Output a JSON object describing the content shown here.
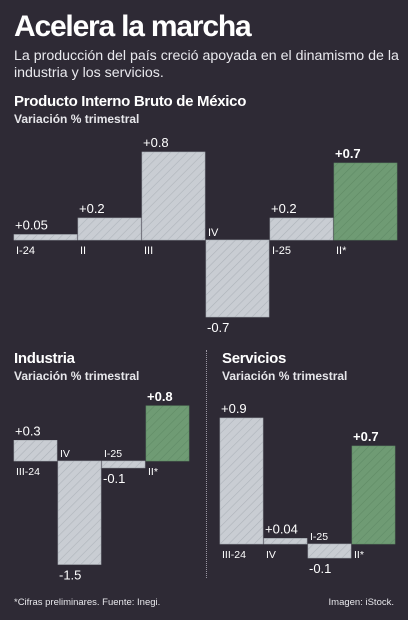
{
  "header": {
    "title": "Acelera la marcha",
    "subtitle": "La producción del país creció apoyada en el dinamismo de la industria y los servicios."
  },
  "colors": {
    "background": "#2e2a35",
    "bar_gray": "#c9cdd3",
    "bar_green": "#6f9b74"
  },
  "chart_data": [
    {
      "type": "bar",
      "title": "Producto Interno Bruto de México",
      "subtitle": "Variación % trimestral",
      "categories": [
        "I-24",
        "II",
        "III",
        "IV",
        "I-25",
        "II*"
      ],
      "values": [
        0.05,
        0.2,
        0.8,
        -0.7,
        0.2,
        0.7
      ],
      "labels": [
        "+0.05",
        "+0.2",
        "+0.8",
        "-0.7",
        "+0.2",
        "+0.7"
      ],
      "highlight": [
        false,
        false,
        false,
        false,
        false,
        true
      ]
    },
    {
      "type": "bar",
      "title": "Industria",
      "subtitle": "Variación % trimestral",
      "categories": [
        "III-24",
        "IV",
        "I-25",
        "II*"
      ],
      "values": [
        0.3,
        -1.5,
        -0.1,
        0.8
      ],
      "labels": [
        "+0.3",
        "-1.5",
        "-0.1",
        "+0.8"
      ],
      "highlight": [
        false,
        false,
        false,
        true
      ]
    },
    {
      "type": "bar",
      "title": "Servicios",
      "subtitle": "Variación % trimestral",
      "categories": [
        "III-24",
        "IV",
        "I-25",
        "II*"
      ],
      "values": [
        0.9,
        0.04,
        -0.1,
        0.7
      ],
      "labels": [
        "+0.9",
        "+0.04",
        "-0.1",
        "+0.7"
      ],
      "highlight": [
        false,
        false,
        false,
        true
      ]
    }
  ],
  "footer": {
    "note": "*Cifras preliminares. Fuente: Inegi.",
    "credit": "Imagen: iStock."
  }
}
